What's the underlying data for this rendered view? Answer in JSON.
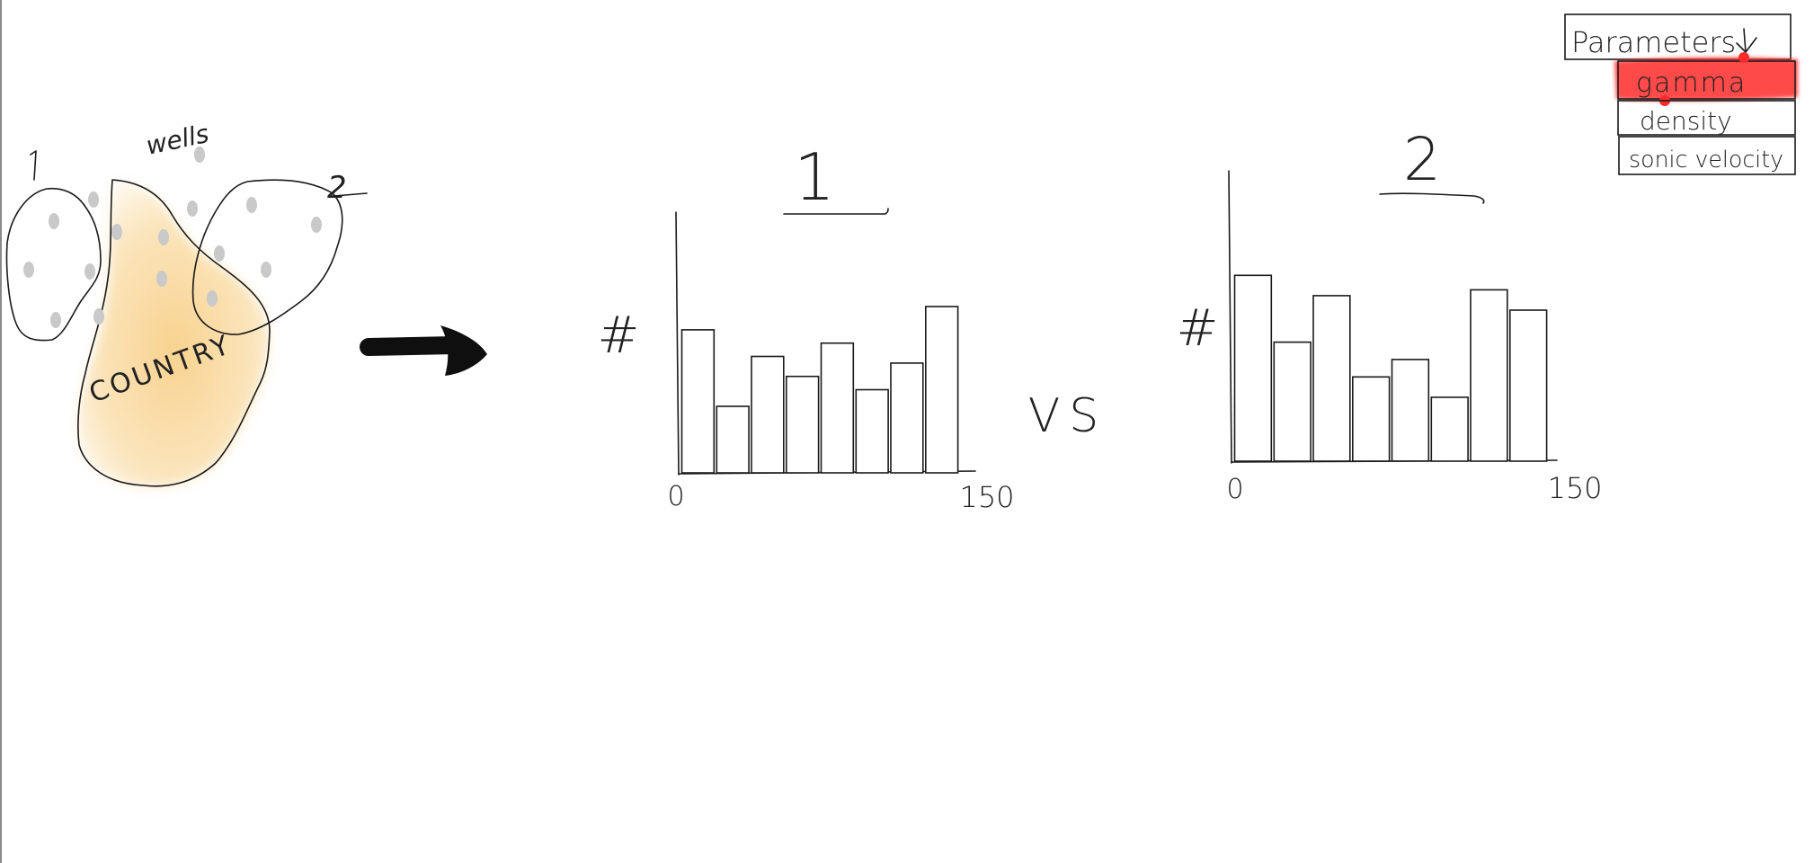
{
  "map_sketch": {
    "region_1_label": "1",
    "region_2_label": "2",
    "wells_label": "wells",
    "country_label": "COUNTRY",
    "country_fill": "#f6c46a",
    "well_color": "#c9c9c9"
  },
  "arrow": {
    "icon": "right-arrow-icon"
  },
  "vs_label": "VS",
  "parameters_menu": {
    "title": "Parameters",
    "dropdown_icon": "down-arrow-icon",
    "items": [
      {
        "label": "gamma",
        "selected": true
      },
      {
        "label": "density",
        "selected": false
      },
      {
        "label": "sonic velocity",
        "selected": false
      }
    ],
    "highlight_color": "#ff2a2a"
  },
  "chart_data": [
    {
      "type": "bar",
      "title": "1",
      "ylabel": "#",
      "xlim": [
        0,
        150
      ],
      "x_tick_labels": [
        "0",
        "150"
      ],
      "values": [
        0.43,
        0.2,
        0.35,
        0.29,
        0.39,
        0.25,
        0.33,
        0.5
      ]
    },
    {
      "type": "bar",
      "title": "2",
      "ylabel": "#",
      "xlim": [
        0,
        150
      ],
      "x_tick_labels": [
        "0",
        "150"
      ],
      "values": [
        0.64,
        0.41,
        0.57,
        0.29,
        0.35,
        0.22,
        0.59,
        0.52
      ]
    }
  ]
}
